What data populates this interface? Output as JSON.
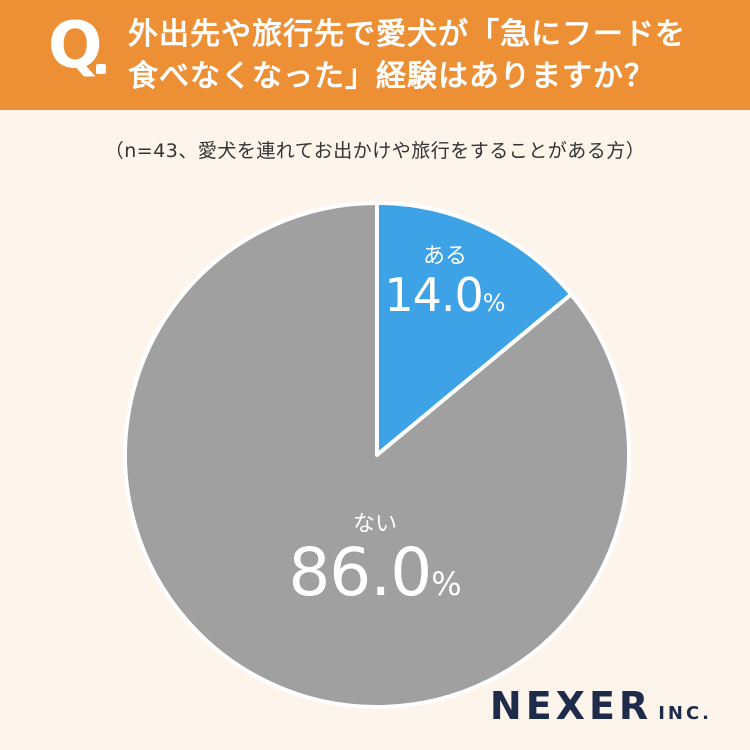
{
  "header": {
    "mark": "Q",
    "question_line1": "外出先や旅行先で愛犬が「急にフードを",
    "question_line2": "食べなくなった」経験はありますか？"
  },
  "sample_note": "（n=43、愛犬を連れてお出かけや旅行をすることがある方）",
  "chart_data": {
    "type": "pie",
    "slices": [
      {
        "label": "ある",
        "value": 14.0,
        "value_text": "14.0",
        "unit": "%",
        "color": "#3da2e6"
      },
      {
        "label": "ない",
        "value": 86.0,
        "value_text": "86.0",
        "unit": "%",
        "color": "#a0a0a0"
      }
    ],
    "start": "12 o'clock",
    "direction": "clockwise",
    "border_color": "#ffffff"
  },
  "logo": {
    "main": "NEXER",
    "sub": "INC."
  }
}
